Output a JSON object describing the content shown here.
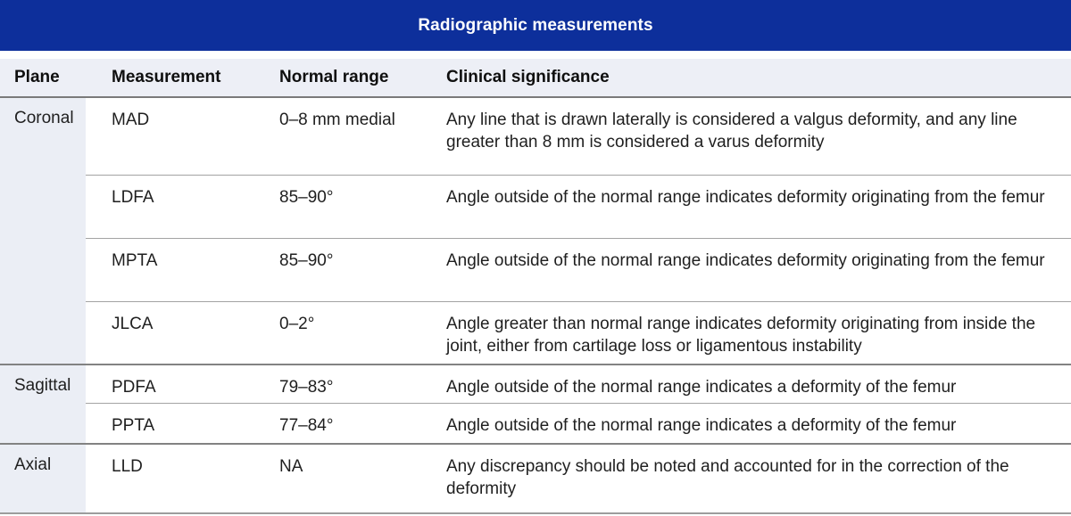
{
  "title": "Radiographic measurements",
  "columns": [
    "Plane",
    "Measurement",
    "Normal range",
    "Clinical significance"
  ],
  "groups": [
    {
      "plane": "Coronal",
      "rows": [
        {
          "measurement": "MAD",
          "normal_range": "0–8 mm medial",
          "clinical_significance": "Any line that is drawn laterally is considered a valgus deformity, and any line greater than 8 mm is considered a varus deformity"
        },
        {
          "measurement": "LDFA",
          "normal_range": "85–90°",
          "clinical_significance": "Angle outside of the normal range indicates deformity originating from the femur"
        },
        {
          "measurement": "MPTA",
          "normal_range": "85–90°",
          "clinical_significance": "Angle outside of the normal range indicates deformity originating from the femur"
        },
        {
          "measurement": "JLCA",
          "normal_range": "0–2°",
          "clinical_significance": "Angle greater than normal range indicates deformity originating from inside the joint, either from cartilage loss or ligamentous instability"
        }
      ]
    },
    {
      "plane": "Sagittal",
      "rows": [
        {
          "measurement": "PDFA",
          "normal_range": "79–83°",
          "clinical_significance": "Angle outside of the normal range indicates a deformity of the femur"
        },
        {
          "measurement": "PPTA",
          "normal_range": "77–84°",
          "clinical_significance": "Angle outside of the normal range indicates a deformity of the femur"
        }
      ]
    },
    {
      "plane": "Axial",
      "rows": [
        {
          "measurement": "LLD",
          "normal_range": "NA",
          "clinical_significance": "Any discrepancy should be noted and accounted for in the correction of the deformity"
        }
      ]
    }
  ],
  "colors": {
    "header_bar": "#0d2f9b",
    "title_text": "#ffffff",
    "header_row_bg": "#edeff6",
    "plane_col_bg": "#ebeef5",
    "header_rule": "#7a7a7a",
    "group_rule": "#828282",
    "row_rule": "#a3a3a3",
    "bottom_rule": "#9c9c9c"
  }
}
